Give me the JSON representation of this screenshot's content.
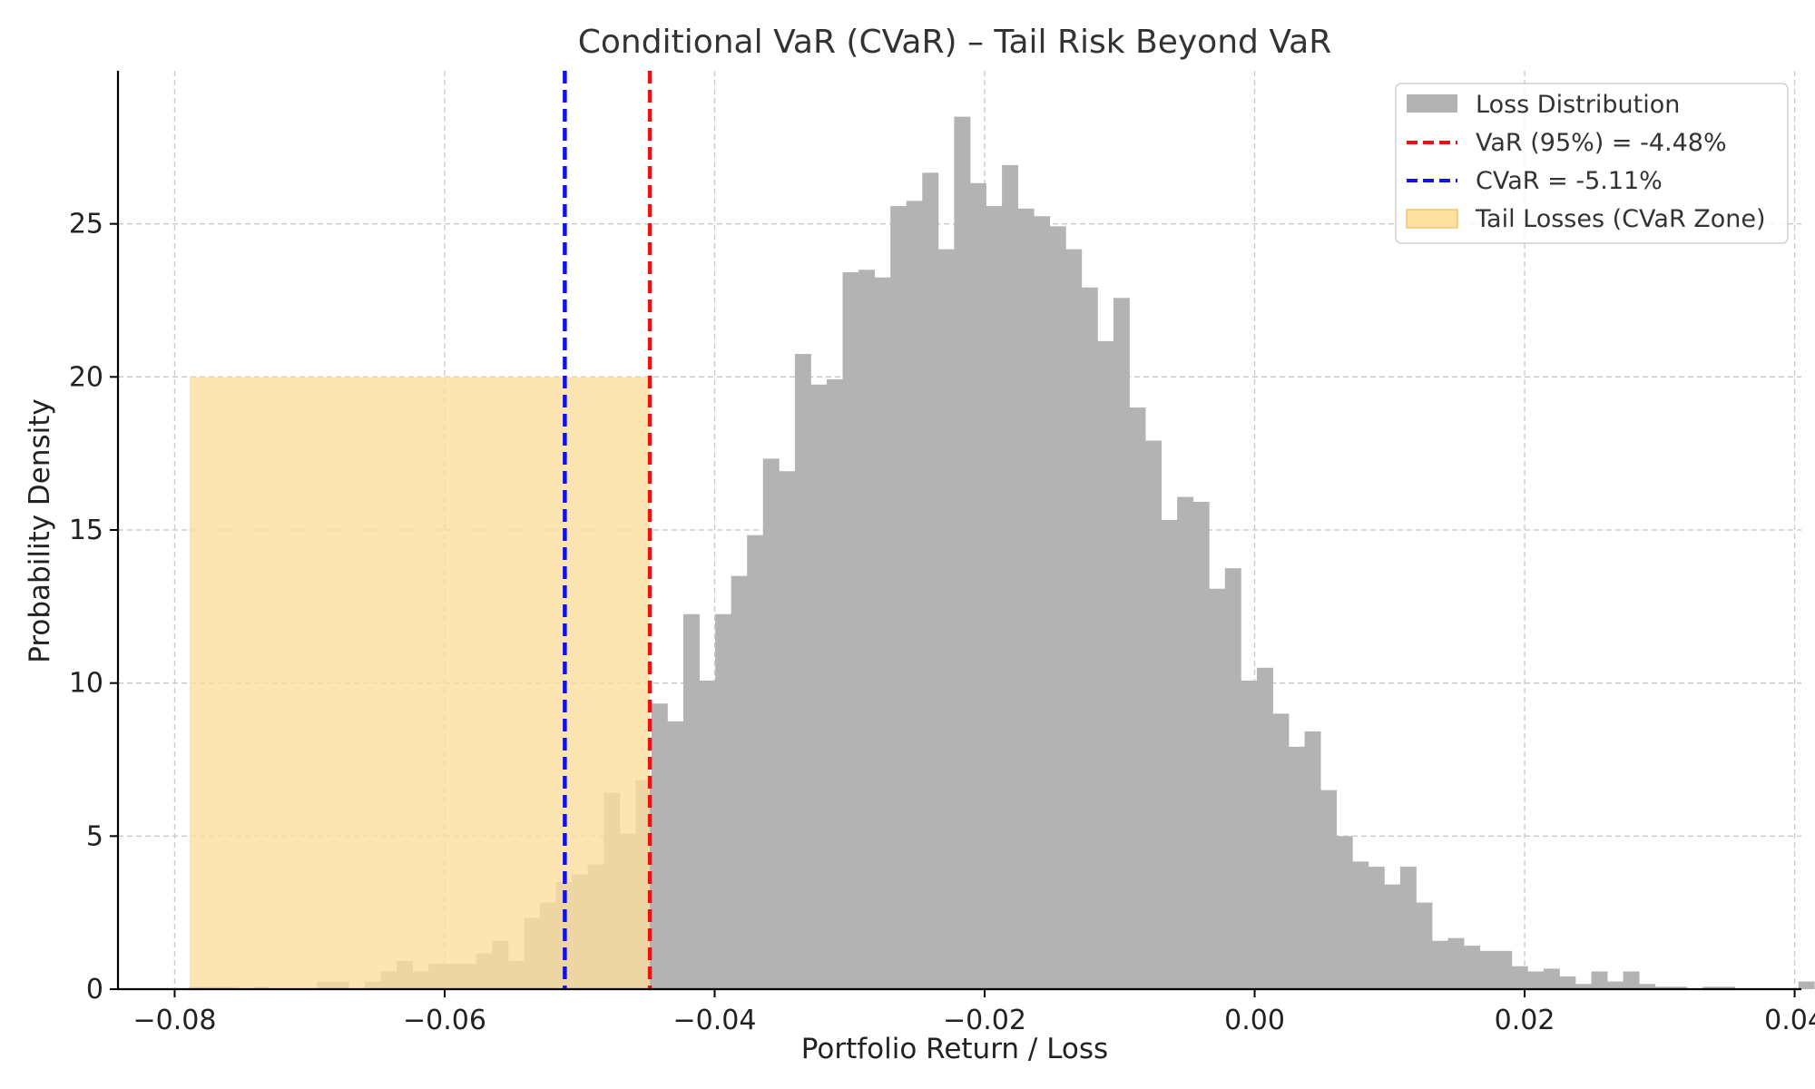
{
  "chart_data": {
    "type": "bar",
    "title": "Conditional VaR (CVaR) – Tail Risk Beyond VaR",
    "xlabel": "Portfolio Return / Loss",
    "ylabel": "Probability Density",
    "xlim": [
      -0.0842,
      0.0405
    ],
    "ylim": [
      0,
      30
    ],
    "xticks": [
      -0.08,
      -0.06,
      -0.04,
      -0.02,
      0.0,
      0.02,
      0.04
    ],
    "xtick_labels": [
      "−0.08",
      "−0.06",
      "−0.04",
      "−0.02",
      "0.00",
      "0.02",
      "0.04"
    ],
    "yticks": [
      0,
      5,
      10,
      15,
      20,
      25
    ],
    "ytick_labels": [
      "0",
      "5",
      "10",
      "15",
      "20",
      "25"
    ],
    "grid": true,
    "legend_position": "top-right",
    "histogram": {
      "name": "Loss Distribution",
      "color": "#b3b3b3",
      "bin_start": -0.0789,
      "bin_width": 0.00118,
      "densities": [
        0.08,
        0.08,
        0.08,
        0,
        0.08,
        0,
        0,
        0,
        0.25,
        0.25,
        0,
        0.25,
        0.58,
        0.92,
        0.58,
        0.83,
        0.83,
        0.83,
        1.17,
        1.58,
        0.92,
        2.33,
        2.83,
        3.5,
        3.75,
        4.08,
        6.42,
        5.08,
        6.83,
        9.33,
        8.75,
        12.25,
        10.08,
        12.25,
        13.5,
        14.83,
        17.33,
        16.92,
        20.75,
        19.75,
        19.92,
        23.42,
        23.5,
        23.25,
        25.58,
        25.75,
        26.67,
        24.17,
        28.5,
        26.33,
        25.58,
        26.92,
        25.5,
        25.25,
        24.92,
        24.17,
        22.92,
        21.17,
        22.58,
        19.0,
        17.92,
        15.33,
        16.08,
        15.92,
        13.08,
        13.75,
        10.08,
        10.5,
        9.0,
        7.92,
        8.42,
        6.5,
        5.0,
        4.17,
        4.0,
        3.42,
        4.0,
        2.83,
        1.58,
        1.67,
        1.42,
        1.25,
        1.25,
        0.75,
        0.58,
        0.67,
        0.42,
        0.17,
        0.58,
        0.25,
        0.58,
        0.17,
        0.08,
        0.08,
        0,
        0.08,
        0.08,
        0,
        0,
        0,
        0,
        0.25
      ]
    },
    "var_line": {
      "name": "VaR (95%) = -4.48%",
      "x": -0.0448,
      "color": "#ee1111",
      "style": "dashed"
    },
    "cvar_line": {
      "name": "CVaR = -5.11%",
      "x": -0.0511,
      "color": "#1111ee",
      "style": "dashed"
    },
    "tail_zone": {
      "name": "Tail Losses (CVaR Zone)",
      "x_start": -0.0789,
      "x_end": -0.0448,
      "y_top": 20,
      "color": "#fddf9f"
    }
  }
}
